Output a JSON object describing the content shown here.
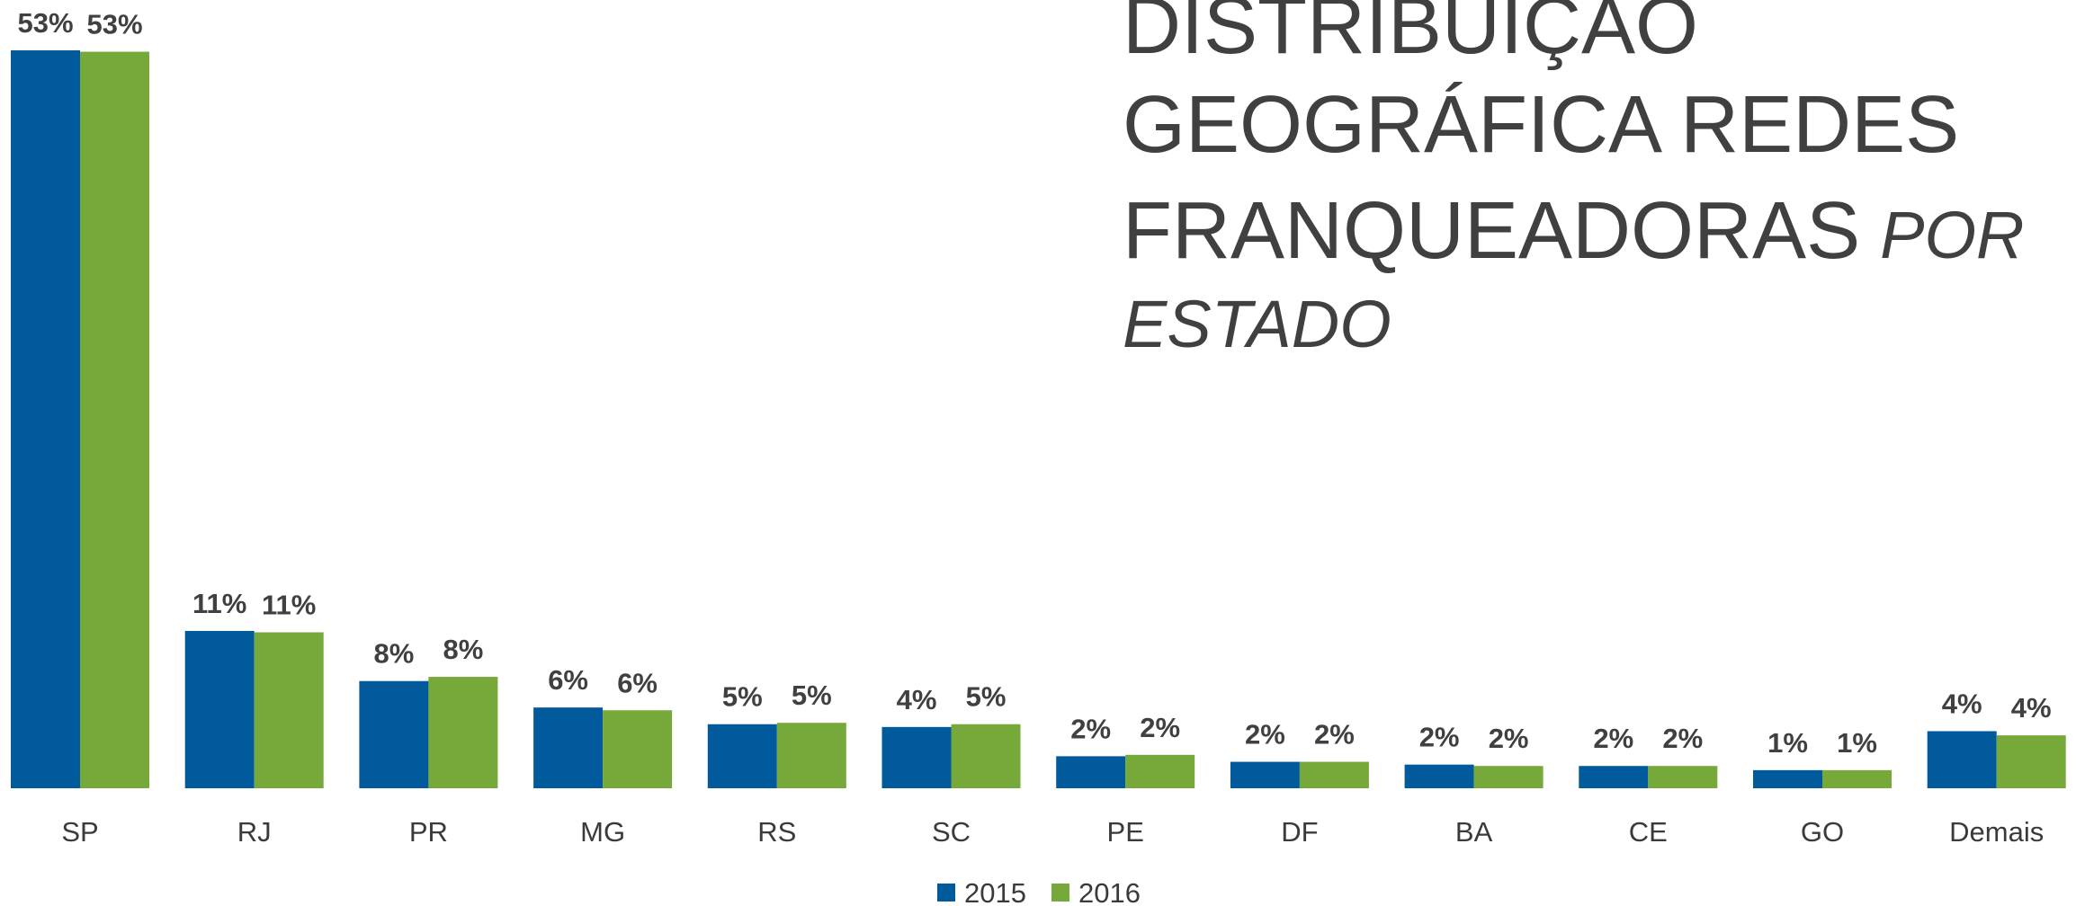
{
  "chart_data": {
    "type": "bar",
    "title_lines": [
      "DISTRIBUIÇÃO",
      "GEOGRÁFICA REDES",
      "FRANQUEADORAS"
    ],
    "title_italic": [
      "POR",
      "ESTADO"
    ],
    "categories": [
      "SP",
      "RJ",
      "PR",
      "MG",
      "RS",
      "SC",
      "PE",
      "DF",
      "BA",
      "CE",
      "GO",
      "Demais"
    ],
    "series": [
      {
        "name": "2015",
        "color": "#005a9c",
        "values": [
          53,
          11.3,
          7.7,
          5.8,
          4.6,
          4.4,
          2.3,
          1.9,
          1.7,
          1.6,
          1.3,
          4.1
        ],
        "value_labels": [
          "53%",
          "11%",
          "8%",
          "6%",
          "5%",
          "4%",
          "2%",
          "2%",
          "2%",
          "2%",
          "1%",
          "4%"
        ]
      },
      {
        "name": "2016",
        "color": "#76a83a",
        "values": [
          52.9,
          11.2,
          8.0,
          5.6,
          4.7,
          4.6,
          2.4,
          1.9,
          1.6,
          1.6,
          1.3,
          3.8
        ],
        "value_labels": [
          "53%",
          "11%",
          "8%",
          "6%",
          "5%",
          "5%",
          "2%",
          "2%",
          "2%",
          "2%",
          "1%",
          "4%"
        ]
      }
    ],
    "ylim": [
      0,
      53
    ],
    "legend": "bottom"
  }
}
